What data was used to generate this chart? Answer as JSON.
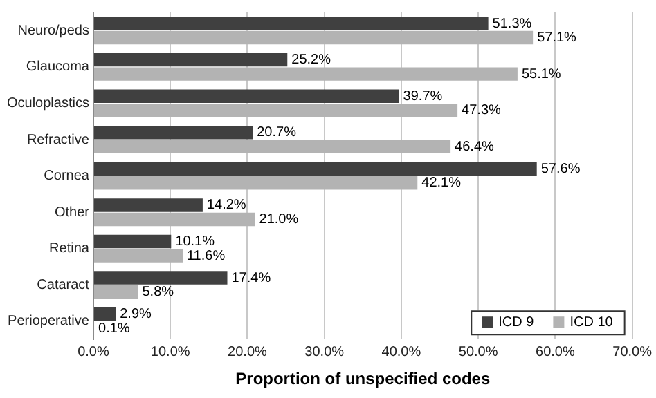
{
  "chart_data": {
    "type": "bar",
    "orientation": "horizontal",
    "xlabel": "Proportion of unspecified codes",
    "categories": [
      "Neuro/peds",
      "Glaucoma",
      "Oculoplastics",
      "Refractive",
      "Cornea",
      "Other",
      "Retina",
      "Cataract",
      "Perioperative"
    ],
    "series": [
      {
        "name": "ICD 9",
        "color": "#404040",
        "values": [
          51.3,
          25.2,
          39.7,
          20.7,
          57.6,
          14.2,
          10.1,
          17.4,
          2.9
        ],
        "value_labels": [
          "51.3%",
          "25.2%",
          "39.7%",
          "20.7%",
          "57.6%",
          "14.2%",
          "10.1%",
          "17.4%",
          "2.9%"
        ]
      },
      {
        "name": "ICD 10",
        "color": "#b3b3b3",
        "values": [
          57.1,
          55.1,
          47.3,
          46.4,
          42.1,
          21.0,
          11.6,
          5.8,
          0.1
        ],
        "value_labels": [
          "57.1%",
          "55.1%",
          "47.3%",
          "46.4%",
          "42.1%",
          "21.0%",
          "11.6%",
          "5.8%",
          "0.1%"
        ]
      }
    ],
    "xlim": [
      0,
      70
    ],
    "xticks": [
      {
        "value": 0,
        "label": "0.0%"
      },
      {
        "value": 10,
        "label": "10.0%"
      },
      {
        "value": 20,
        "label": "20.0%"
      },
      {
        "value": 30,
        "label": "30.0%"
      },
      {
        "value": 40,
        "label": "40.0%"
      },
      {
        "value": 50,
        "label": "50.0%"
      },
      {
        "value": 60,
        "label": "60.0%"
      },
      {
        "value": 70,
        "label": "70.0%"
      }
    ],
    "grid": "x",
    "legend": "bottom right"
  }
}
